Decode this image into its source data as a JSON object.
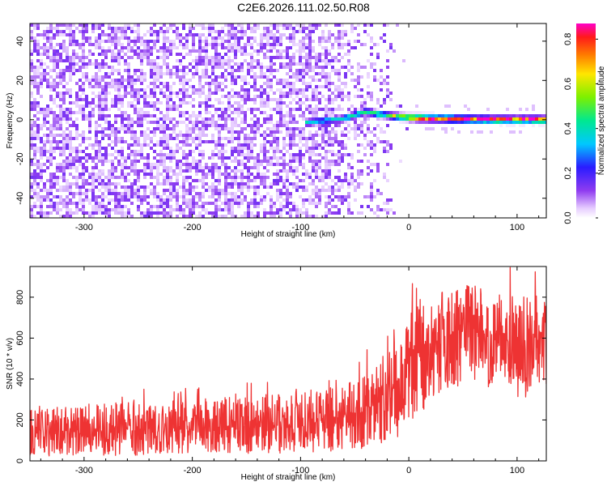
{
  "title": "C2E6.2026.111.02.50.R08",
  "chart_data": [
    {
      "type": "heatmap",
      "name": "spectrogram",
      "xlabel": "Height of straight line (km)",
      "ylabel": "Frequency (Hz)",
      "xlim": [
        -350,
        127
      ],
      "ylim": [
        -50,
        49
      ],
      "xticks": [
        -300,
        -200,
        -100,
        0,
        100
      ],
      "yticks": [
        -40,
        -20,
        0,
        20,
        40
      ],
      "xtick_labels": [
        "-300",
        "-200",
        "-100",
        "0",
        "100"
      ],
      "ytick_labels": [
        "-40",
        "-20",
        "0",
        "20",
        "40"
      ],
      "signal": {
        "x_start": -95,
        "x_end": 127,
        "frequency_hz": [
          {
            "x": -95,
            "f": -1.5
          },
          {
            "x": -60,
            "f": 0.5
          },
          {
            "x": -40,
            "f": 4
          },
          {
            "x": -25,
            "f": 2.5
          },
          {
            "x": -10,
            "f": 1.5
          },
          {
            "x": 0,
            "f": 1
          },
          {
            "x": 30,
            "f": 0.5
          },
          {
            "x": 80,
            "f": 0
          },
          {
            "x": 127,
            "f": 0
          }
        ],
        "peak_amplitude": 0.85
      },
      "noise": {
        "x_end": -15,
        "amplitude_range": [
          0.0,
          0.15
        ]
      },
      "colorbar": {
        "label": "Normalized spectral amplitude",
        "range": [
          0.0,
          0.87
        ],
        "ticks": [
          0.0,
          0.2,
          0.4,
          0.6,
          0.8
        ],
        "tick_labels": [
          "0.0",
          "0.2",
          "0.4",
          "0.6",
          "0.8"
        ],
        "colormap": "rainbow (white→violet→blue→cyan→green→yellow→red→magenta)"
      }
    },
    {
      "type": "line",
      "name": "snr",
      "xlabel": "Height of straight line (km)",
      "ylabel": "SNR (10 * v/v)",
      "xlim": [
        -350,
        127
      ],
      "ylim": [
        0,
        950
      ],
      "xticks": [
        -300,
        -200,
        -100,
        0,
        100
      ],
      "yticks": [
        0,
        200,
        400,
        600,
        800
      ],
      "xtick_labels": [
        "-300",
        "-200",
        "-100",
        "0",
        "100"
      ],
      "ytick_labels": [
        "0",
        "200",
        "400",
        "600",
        "800"
      ],
      "series": [
        {
          "name": "SNR",
          "color": "#ee3333",
          "envelope": [
            {
              "x": -350,
              "low": 20,
              "mid": 130,
              "high": 260
            },
            {
              "x": -300,
              "low": 25,
              "mid": 135,
              "high": 270
            },
            {
              "x": -200,
              "low": 30,
              "mid": 140,
              "high": 290
            },
            {
              "x": -150,
              "low": 35,
              "mid": 150,
              "high": 310
            },
            {
              "x": -100,
              "low": 40,
              "mid": 165,
              "high": 330
            },
            {
              "x": -60,
              "low": 50,
              "mid": 200,
              "high": 380
            },
            {
              "x": -40,
              "low": 60,
              "mid": 240,
              "high": 430
            },
            {
              "x": -20,
              "low": 80,
              "mid": 300,
              "high": 520
            },
            {
              "x": -5,
              "low": 120,
              "mid": 400,
              "high": 650
            },
            {
              "x": 10,
              "low": 230,
              "mid": 500,
              "high": 780
            },
            {
              "x": 30,
              "low": 330,
              "mid": 590,
              "high": 840
            },
            {
              "x": 60,
              "low": 370,
              "mid": 610,
              "high": 860
            },
            {
              "x": 90,
              "low": 320,
              "mid": 580,
              "high": 800
            },
            {
              "x": 127,
              "low": 300,
              "mid": 560,
              "high": 780
            }
          ]
        }
      ]
    }
  ]
}
